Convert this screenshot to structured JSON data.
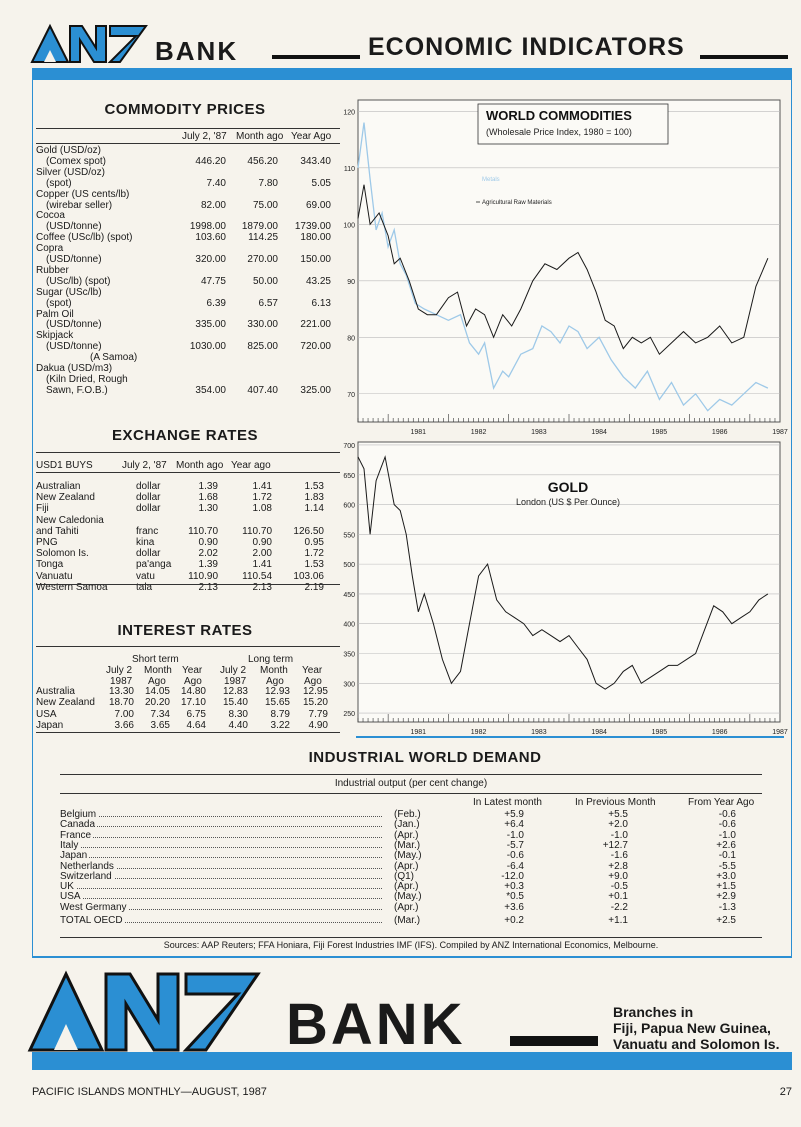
{
  "header": {
    "bank_word": "BANK",
    "title": "ECONOMIC INDICATORS"
  },
  "commodity": {
    "title": "COMMODITY PRICES",
    "columns": [
      "July 2, '87",
      "Month ago",
      "Year Ago"
    ],
    "rows": [
      {
        "label": "Gold (USD/oz)",
        "v": [
          "",
          "",
          ""
        ]
      },
      {
        "label": "(Comex spot)",
        "indent": true,
        "v": [
          "446.20",
          "456.20",
          "343.40"
        ]
      },
      {
        "label": "Silver (USD/oz)",
        "v": [
          "",
          "",
          ""
        ]
      },
      {
        "label": "(spot)",
        "indent": true,
        "v": [
          "7.40",
          "7.80",
          "5.05"
        ]
      },
      {
        "label": "Copper (US cents/lb)",
        "v": [
          "",
          "",
          ""
        ]
      },
      {
        "label": "(wirebar seller)",
        "indent": true,
        "v": [
          "82.00",
          "75.00",
          "69.00"
        ]
      },
      {
        "label": "Cocoa",
        "v": [
          "",
          "",
          ""
        ]
      },
      {
        "label": "(USD/tonne)",
        "indent": true,
        "v": [
          "1998.00",
          "1879.00",
          "1739.00"
        ]
      },
      {
        "label": "Coffee (USc/lb) (spot)",
        "v": [
          "103.60",
          "114.25",
          "180.00"
        ]
      },
      {
        "label": "Copra",
        "v": [
          "",
          "",
          ""
        ]
      },
      {
        "label": "(USD/tonne)",
        "indent": true,
        "v": [
          "320.00",
          "270.00",
          "150.00"
        ]
      },
      {
        "label": "Rubber",
        "v": [
          "",
          "",
          ""
        ]
      },
      {
        "label": "(USc/lb) (spot)",
        "indent": true,
        "v": [
          "47.75",
          "50.00",
          "43.25"
        ]
      },
      {
        "label": "Sugar (USc/lb)",
        "v": [
          "",
          "",
          ""
        ]
      },
      {
        "label": "(spot)",
        "indent": true,
        "v": [
          "6.39",
          "6.57",
          "6.13"
        ]
      },
      {
        "label": "Palm Oil",
        "v": [
          "",
          "",
          ""
        ]
      },
      {
        "label": "(USD/tonne)",
        "indent": true,
        "v": [
          "335.00",
          "330.00",
          "221.00"
        ]
      },
      {
        "label": "Skipjack",
        "v": [
          "",
          "",
          ""
        ]
      },
      {
        "label": "(USD/tonne)",
        "indent": true,
        "v": [
          "1030.00",
          "825.00",
          "720.00"
        ]
      },
      {
        "label": "(A Samoa)",
        "indent2": true,
        "v": [
          "",
          "",
          ""
        ]
      },
      {
        "label": "Dakua (USD/m3)",
        "v": [
          "",
          "",
          ""
        ]
      },
      {
        "label": "(Kiln Dried, Rough",
        "indent": true,
        "v": [
          "",
          "",
          ""
        ]
      },
      {
        "label": "Sawn, F.O.B.)",
        "indent": true,
        "v": [
          "354.00",
          "407.40",
          "325.00"
        ]
      }
    ]
  },
  "exchange": {
    "title": "EXCHANGE RATES",
    "head_label": "USD1 BUYS",
    "columns": [
      "July 2, '87",
      "Month ago",
      "Year ago"
    ],
    "rows": [
      {
        "country": "Australian",
        "unit": "dollar",
        "v": [
          "1.39",
          "1.41",
          "1.53"
        ]
      },
      {
        "country": "New Zealand",
        "unit": "dollar",
        "v": [
          "1.68",
          "1.72",
          "1.83"
        ]
      },
      {
        "country": "Fiji",
        "unit": "dollar",
        "v": [
          "1.30",
          "1.08",
          "1.14"
        ]
      },
      {
        "country": "New Caledonia",
        "unit": "",
        "v": [
          "",
          "",
          ""
        ]
      },
      {
        "country": "and Tahiti",
        "unit": "franc",
        "v": [
          "110.70",
          "110.70",
          "126.50"
        ]
      },
      {
        "country": "PNG",
        "unit": "kina",
        "v": [
          "0.90",
          "0.90",
          "0.95"
        ]
      },
      {
        "country": "Solomon Is.",
        "unit": "dollar",
        "v": [
          "2.02",
          "2.00",
          "1.72"
        ]
      },
      {
        "country": "Tonga",
        "unit": "pa'anga",
        "v": [
          "1.39",
          "1.41",
          "1.53"
        ]
      },
      {
        "country": "Vanuatu",
        "unit": "vatu",
        "v": [
          "110.90",
          "110.54",
          "103.06"
        ]
      },
      {
        "country": "Western Samoa",
        "unit": "tala",
        "v": [
          "2.13",
          "2.13",
          "2.19"
        ]
      }
    ]
  },
  "interest": {
    "title": "INTEREST RATES",
    "short_term": "Short term",
    "long_term": "Long term",
    "col_a": [
      "July 2",
      "1987"
    ],
    "col_b": [
      "Month",
      "Ago"
    ],
    "col_c": [
      "Year",
      "Ago"
    ],
    "rows": [
      {
        "country": "Australia",
        "v": [
          "13.30",
          "14.05",
          "14.80",
          "12.83",
          "12.93",
          "12.95"
        ]
      },
      {
        "country": "New Zealand",
        "v": [
          "18.70",
          "20.20",
          "17.10",
          "15.40",
          "15.65",
          "15.20"
        ]
      },
      {
        "country": "USA",
        "v": [
          "7.00",
          "7.34",
          "6.75",
          "8.30",
          "8.79",
          "7.79"
        ]
      },
      {
        "country": "Japan",
        "v": [
          "3.66",
          "3.65",
          "4.64",
          "4.40",
          "3.22",
          "4.90"
        ]
      }
    ]
  },
  "chart_data": [
    {
      "type": "line",
      "title": "WORLD COMMODITIES",
      "subtitle": "(Wholesale Price Index, 1980 = 100)",
      "x_ticks": [
        "1981",
        "1982",
        "1983",
        "1984",
        "1985",
        "1986",
        "1987"
      ],
      "y_ticks": [
        70,
        80,
        90,
        100,
        110,
        120
      ],
      "ylim": [
        65,
        122
      ],
      "xlim": [
        1980.5,
        1987.5
      ],
      "series": [
        {
          "name": "Metals",
          "color": "#9ec9e8",
          "x": [
            1980.5,
            1980.6,
            1980.7,
            1980.8,
            1980.9,
            1981.0,
            1981.1,
            1981.2,
            1981.3,
            1981.45,
            1981.6,
            1981.8,
            1982.0,
            1982.2,
            1982.35,
            1982.5,
            1982.6,
            1982.75,
            1982.9,
            1983.0,
            1983.2,
            1983.4,
            1983.55,
            1983.7,
            1983.85,
            1984.0,
            1984.15,
            1984.3,
            1984.5,
            1984.7,
            1984.9,
            1985.1,
            1985.3,
            1985.5,
            1985.7,
            1985.9,
            1986.1,
            1986.3,
            1986.5,
            1986.7,
            1986.9,
            1987.1,
            1987.3
          ],
          "y": [
            110,
            118,
            108,
            99,
            102,
            96,
            99,
            93,
            91,
            86,
            85,
            84,
            83,
            84,
            79,
            77,
            79,
            71,
            74,
            73,
            77,
            78,
            82,
            81,
            79,
            82,
            81,
            78,
            80,
            76,
            73,
            71,
            74,
            69,
            72,
            68,
            70,
            67,
            69,
            68,
            70,
            72,
            71
          ]
        },
        {
          "name": "Agricultural Raw Materials",
          "color": "#1a1a1a",
          "x": [
            1980.5,
            1980.6,
            1980.7,
            1980.85,
            1981.0,
            1981.1,
            1981.2,
            1981.35,
            1981.5,
            1981.65,
            1981.8,
            1982.0,
            1982.15,
            1982.3,
            1982.45,
            1982.6,
            1982.75,
            1982.9,
            1983.05,
            1983.2,
            1983.4,
            1983.6,
            1983.8,
            1984.0,
            1984.15,
            1984.3,
            1984.45,
            1984.6,
            1984.75,
            1984.9,
            1985.05,
            1985.2,
            1985.35,
            1985.5,
            1985.7,
            1985.9,
            1986.1,
            1986.3,
            1986.5,
            1986.7,
            1986.9,
            1987.1,
            1987.3
          ],
          "y": [
            101,
            107,
            100,
            102,
            98,
            93,
            94,
            90,
            85,
            84,
            84,
            87,
            88,
            82,
            85,
            84,
            80,
            84,
            82,
            85,
            90,
            93,
            92,
            94,
            95,
            92,
            88,
            83,
            82,
            78,
            80,
            79,
            80,
            77,
            79,
            81,
            79,
            80,
            82,
            79,
            80,
            89,
            94
          ]
        }
      ]
    },
    {
      "type": "line",
      "title": "GOLD",
      "subtitle": "London (US $ Per Ounce)",
      "x_ticks": [
        "1981",
        "1982",
        "1983",
        "1984",
        "1985",
        "1986",
        "1987"
      ],
      "y_ticks": [
        250,
        300,
        350,
        400,
        450,
        500,
        550,
        600,
        650,
        700
      ],
      "ylim": [
        235,
        705
      ],
      "xlim": [
        1980.5,
        1987.5
      ],
      "series": [
        {
          "name": "",
          "color": "#1a1a1a",
          "x": [
            1980.5,
            1980.6,
            1980.7,
            1980.8,
            1980.95,
            1981.1,
            1981.2,
            1981.3,
            1981.4,
            1981.5,
            1981.6,
            1981.75,
            1981.9,
            1982.05,
            1982.2,
            1982.35,
            1982.5,
            1982.65,
            1982.8,
            1982.95,
            1983.1,
            1983.25,
            1983.4,
            1983.55,
            1983.7,
            1983.85,
            1984.0,
            1984.15,
            1984.3,
            1984.45,
            1984.6,
            1984.75,
            1984.9,
            1985.05,
            1985.2,
            1985.35,
            1985.5,
            1985.65,
            1985.8,
            1985.95,
            1986.1,
            1986.25,
            1986.4,
            1986.55,
            1986.7,
            1986.85,
            1987.0,
            1987.15,
            1987.3
          ],
          "y": [
            680,
            660,
            550,
            640,
            680,
            600,
            590,
            550,
            480,
            420,
            450,
            400,
            340,
            300,
            320,
            400,
            480,
            500,
            440,
            420,
            410,
            400,
            380,
            390,
            380,
            370,
            380,
            360,
            340,
            300,
            290,
            300,
            320,
            330,
            300,
            310,
            320,
            330,
            330,
            340,
            350,
            390,
            430,
            420,
            400,
            410,
            420,
            440,
            450
          ]
        }
      ]
    }
  ],
  "industrial": {
    "title": "INDUSTRIAL WORLD DEMAND",
    "subtitle": "Industrial output (per cent change)",
    "columns": [
      "In Latest month",
      "In Previous Month",
      "From Year Ago"
    ],
    "rows": [
      {
        "country": "Belgium",
        "month": "(Feb.)",
        "v": [
          "+5.9",
          "+5.5",
          "-0.6"
        ]
      },
      {
        "country": "Canada",
        "month": "(Jan.)",
        "v": [
          "+6.4",
          "+2.0",
          "-0.6"
        ]
      },
      {
        "country": "France",
        "month": "(Apr.)",
        "v": [
          "-1.0",
          "-1.0",
          "-1.0"
        ]
      },
      {
        "country": "Italy",
        "month": "(Mar.)",
        "v": [
          "-5.7",
          "+12.7",
          "+2.6"
        ]
      },
      {
        "country": "Japan",
        "month": "(May.)",
        "v": [
          "-0.6",
          "-1.6",
          "-0.1"
        ]
      },
      {
        "country": "Netherlands",
        "month": "(Apr.)",
        "v": [
          "-6.4",
          "+2.8",
          "-5.5"
        ]
      },
      {
        "country": "Switzerland",
        "month": "(Q1)",
        "v": [
          "-12.0",
          "+9.0",
          "+3.0"
        ]
      },
      {
        "country": "UK",
        "month": "(Apr.)",
        "v": [
          "+0.3",
          "-0.5",
          "+1.5"
        ]
      },
      {
        "country": "USA",
        "month": "(May.)",
        "v": [
          "*0.5",
          "+0.1",
          "+2.9"
        ]
      },
      {
        "country": "West Germany",
        "month": "(Apr.)",
        "v": [
          "+3.6",
          "-2.2",
          "-1.3"
        ]
      },
      {
        "country": "TOTAL OECD",
        "month": "(Mar.)",
        "v": [
          "+0.2",
          "+1.1",
          "+2.5"
        ]
      }
    ]
  },
  "sources": "Sources: AAP Reuters; FFA Honiara, Fiji Forest Industries IMF (IFS). Compiled by ANZ International Economics, Melbourne.",
  "ad": {
    "bank_word": "BANK",
    "branches": [
      "Branches in",
      "Fiji, Papua New Guinea,",
      "Vanuatu and Solomon Is."
    ]
  },
  "footer": {
    "publication": "PACIFIC ISLANDS MONTHLY—AUGUST, 1987",
    "page": "27"
  }
}
